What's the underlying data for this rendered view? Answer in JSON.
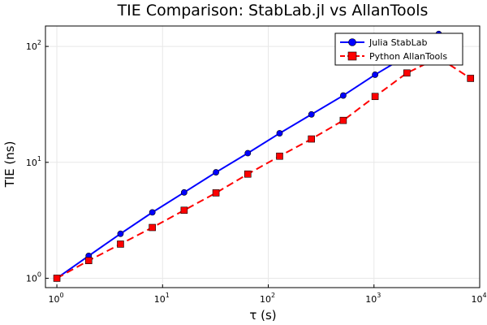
{
  "chart_data": {
    "type": "line",
    "title": "TIE Comparison: StabLab.jl vs AllanTools",
    "xlabel": "τ (s)",
    "ylabel": "TIE (ns)",
    "xscale": "log",
    "yscale": "log",
    "xlim": [
      0.78,
      10000
    ],
    "ylim": [
      0.83,
      150
    ],
    "x_ticks": [
      {
        "base": "10",
        "exp": "0",
        "value": 1
      },
      {
        "base": "10",
        "exp": "1",
        "value": 10
      },
      {
        "base": "10",
        "exp": "2",
        "value": 100
      },
      {
        "base": "10",
        "exp": "3",
        "value": 1000
      },
      {
        "base": "10",
        "exp": "4",
        "value": 10000
      }
    ],
    "y_ticks": [
      {
        "base": "10",
        "exp": "0",
        "value": 1
      },
      {
        "base": "10",
        "exp": "1",
        "value": 10
      },
      {
        "base": "10",
        "exp": "2",
        "value": 100
      }
    ],
    "grid": true,
    "legend_position": "top-right",
    "series": [
      {
        "name": "Julia StabLab",
        "color": "#0000ff",
        "marker": "circle",
        "line_style": "solid",
        "x": [
          1,
          2,
          4,
          8,
          16,
          32,
          64,
          128,
          256,
          512,
          1024,
          2048,
          4096
        ],
        "y": [
          1.0,
          1.56,
          2.42,
          3.7,
          5.5,
          8.2,
          12.0,
          17.8,
          25.9,
          37.7,
          57.0,
          83.0,
          128.0
        ]
      },
      {
        "name": "Python AllanTools",
        "color": "#ff0000",
        "marker": "square",
        "line_style": "dashed",
        "x": [
          1,
          2,
          4,
          8,
          16,
          32,
          64,
          128,
          256,
          512,
          1024,
          2048,
          4096,
          8192
        ],
        "y": [
          1.0,
          1.42,
          1.97,
          2.74,
          3.86,
          5.45,
          7.92,
          11.3,
          15.9,
          23.0,
          37.0,
          59.0,
          80.0,
          53.0
        ]
      }
    ]
  }
}
